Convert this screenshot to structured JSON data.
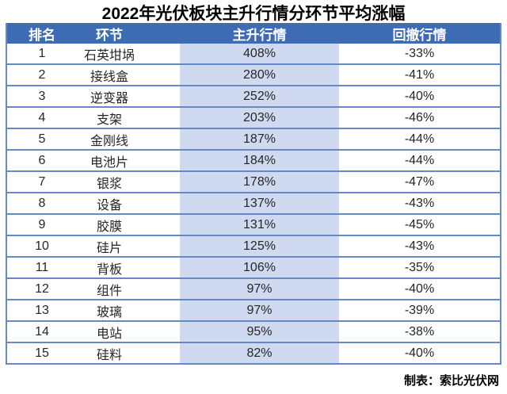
{
  "title": "2022年光伏板块主升行情分环节平均涨幅",
  "footer": {
    "credit": "制表：索比光伏网"
  },
  "colors": {
    "header_bg": "#3d6bb4",
    "rally_column_bg": "#cfd9ef",
    "border": "#6688c7",
    "header_text": "#ffffff",
    "body_text": "#262626"
  },
  "table": {
    "columns": [
      "排名",
      "环节",
      "主升行情",
      "回撤行情"
    ],
    "rows": [
      {
        "rank": "1",
        "segment": "石英坩埚",
        "rally": "408%",
        "drawdown": "-33%"
      },
      {
        "rank": "2",
        "segment": "接线盒",
        "rally": "280%",
        "drawdown": "-41%"
      },
      {
        "rank": "3",
        "segment": "逆变器",
        "rally": "252%",
        "drawdown": "-40%"
      },
      {
        "rank": "4",
        "segment": "支架",
        "rally": "203%",
        "drawdown": "-46%"
      },
      {
        "rank": "5",
        "segment": "金刚线",
        "rally": "187%",
        "drawdown": "-44%"
      },
      {
        "rank": "6",
        "segment": "电池片",
        "rally": "184%",
        "drawdown": "-44%"
      },
      {
        "rank": "7",
        "segment": "银浆",
        "rally": "178%",
        "drawdown": "-47%"
      },
      {
        "rank": "8",
        "segment": "设备",
        "rally": "137%",
        "drawdown": "-43%"
      },
      {
        "rank": "9",
        "segment": "胶膜",
        "rally": "131%",
        "drawdown": "-45%"
      },
      {
        "rank": "10",
        "segment": "硅片",
        "rally": "125%",
        "drawdown": "-43%"
      },
      {
        "rank": "11",
        "segment": "背板",
        "rally": "106%",
        "drawdown": "-35%"
      },
      {
        "rank": "12",
        "segment": "组件",
        "rally": "97%",
        "drawdown": "-40%"
      },
      {
        "rank": "13",
        "segment": "玻璃",
        "rally": "97%",
        "drawdown": "-39%"
      },
      {
        "rank": "14",
        "segment": "电站",
        "rally": "95%",
        "drawdown": "-38%"
      },
      {
        "rank": "15",
        "segment": "硅料",
        "rally": "82%",
        "drawdown": "-40%"
      }
    ]
  },
  "chart_data": {
    "type": "table",
    "title": "2022年光伏板块主升行情分环节平均涨幅",
    "columns": [
      "排名",
      "环节",
      "主升行情",
      "回撤行情"
    ],
    "categories": [
      "石英坩埚",
      "接线盒",
      "逆变器",
      "支架",
      "金刚线",
      "电池片",
      "银浆",
      "设备",
      "胶膜",
      "硅片",
      "背板",
      "组件",
      "玻璃",
      "电站",
      "硅料"
    ],
    "series": [
      {
        "name": "主升行情",
        "values": [
          408,
          280,
          252,
          203,
          187,
          184,
          178,
          137,
          131,
          125,
          106,
          97,
          97,
          95,
          82
        ],
        "unit": "%"
      },
      {
        "name": "回撤行情",
        "values": [
          -33,
          -41,
          -40,
          -46,
          -44,
          -44,
          -47,
          -43,
          -45,
          -43,
          -35,
          -40,
          -39,
          -38,
          -40
        ],
        "unit": "%"
      }
    ],
    "source": "制表：索比光伏网"
  }
}
